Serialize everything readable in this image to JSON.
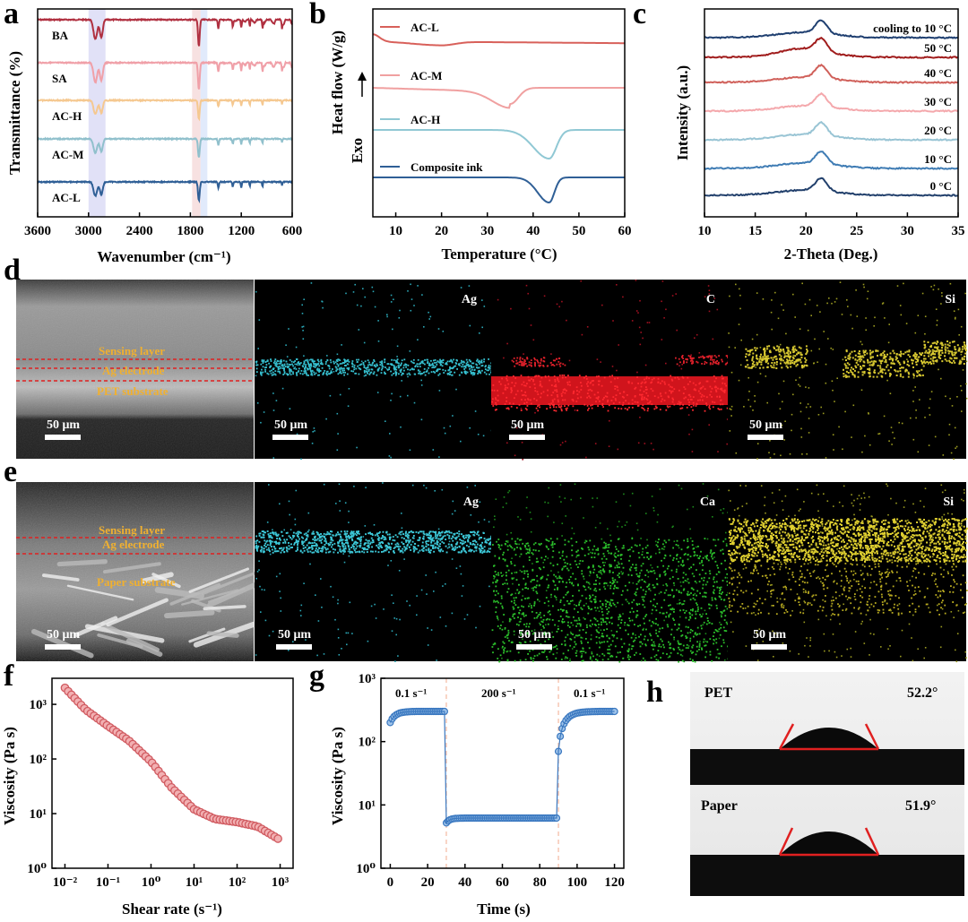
{
  "panel_letters": [
    "a",
    "b",
    "c",
    "d",
    "e",
    "f",
    "g",
    "h"
  ],
  "chart_data": [
    {
      "panel": "a",
      "type": "line",
      "xlabel": "Wavenumber (cm⁻¹)",
      "ylabel": "Transmittance (%)",
      "xlim": [
        3600,
        600
      ],
      "xticks": [
        "3600",
        "3000",
        "2400",
        "1800",
        "1200",
        "600"
      ],
      "highlight_bands": [
        [
          3000,
          2800,
          "#c8c8f0"
        ],
        [
          1780,
          1680,
          "#f0c8c8"
        ],
        [
          1680,
          1600,
          "#c8d8f8"
        ]
      ],
      "series": [
        {
          "name": "BA",
          "color": "#b03040"
        },
        {
          "name": "SA",
          "color": "#f0a0a8"
        },
        {
          "name": "AC-H",
          "color": "#f5c890"
        },
        {
          "name": "AC-M",
          "color": "#90c0cc"
        },
        {
          "name": "AC-L",
          "color": "#2f5f96"
        }
      ]
    },
    {
      "panel": "b",
      "type": "line",
      "xlabel": "Temperature (°C)",
      "ylabel": "Heat flow (W/g)",
      "annotation": "Exo",
      "xlim": [
        5,
        60
      ],
      "xticks": [
        "10",
        "20",
        "30",
        "40",
        "50",
        "60"
      ],
      "series": [
        {
          "name": "AC-L",
          "color": "#d8605a",
          "peak_c": 20
        },
        {
          "name": "AC-M",
          "color": "#f0a0a0",
          "peak_c": 35
        },
        {
          "name": "AC-H",
          "color": "#90c8d4",
          "peak_c": 43.5
        },
        {
          "name": "Composite ink",
          "color": "#2f5f96",
          "peak_c": 43.5
        }
      ]
    },
    {
      "panel": "c",
      "type": "line",
      "xlabel": "2-Theta (Deg.)",
      "ylabel": "Intensity (a.u.)",
      "xlim": [
        10,
        35
      ],
      "xticks": [
        "10",
        "15",
        "20",
        "25",
        "30",
        "35"
      ],
      "series": [
        {
          "name": "cooling to 10 °C",
          "color": "#1f3f70"
        },
        {
          "name": "50 °C",
          "color": "#a01c1c"
        },
        {
          "name": "40 °C",
          "color": "#d0605a"
        },
        {
          "name": "30 °C",
          "color": "#f4a8ac"
        },
        {
          "name": "20 °C",
          "color": "#98c4d4"
        },
        {
          "name": "10 °C",
          "color": "#3f7cb4"
        },
        {
          "name": "0 °C",
          "color": "#22406c"
        }
      ]
    },
    {
      "panel": "f",
      "type": "scatter",
      "xlabel": "Shear rate (s⁻¹)",
      "ylabel": "Viscosity (Pa s)",
      "xscale": "log",
      "yscale": "log",
      "xlim": [
        0.005,
        2000
      ],
      "ylim": [
        1,
        3000
      ],
      "xticks": [
        "10⁻²",
        "10⁻¹",
        "10⁰",
        "10¹",
        "10²",
        "10³"
      ],
      "yticks": [
        "10⁰",
        "10¹",
        "10²",
        "10³"
      ],
      "color": "#d05a60",
      "points": [
        [
          0.01,
          2000
        ],
        [
          0.03,
          800
        ],
        [
          0.1,
          400
        ],
        [
          0.3,
          220
        ],
        [
          1,
          90
        ],
        [
          3,
          30
        ],
        [
          10,
          12
        ],
        [
          30,
          8
        ],
        [
          100,
          7
        ],
        [
          300,
          5.8
        ],
        [
          1000,
          3.3
        ]
      ]
    },
    {
      "panel": "g",
      "type": "scatter",
      "xlabel": "Time (s)",
      "ylabel": "Viscosity (Pa s)",
      "yscale": "log",
      "xlim": [
        -5,
        125
      ],
      "ylim": [
        1,
        1000
      ],
      "xticks": [
        "0",
        "20",
        "40",
        "60",
        "80",
        "100",
        "120"
      ],
      "yticks": [
        "10⁰",
        "10¹",
        "10²",
        "10³"
      ],
      "color": "#3a78c0",
      "segment_labels": [
        "0.1 s⁻¹",
        "200 s⁻¹",
        "0.1 s⁻¹"
      ],
      "boundaries": [
        30,
        90
      ]
    }
  ],
  "sem_d": {
    "layers": [
      "Sensing layer",
      "Ag electrode",
      "PET substrate"
    ],
    "maps": [
      "Ag",
      "C",
      "Si"
    ],
    "scale": "50 μm"
  },
  "sem_e": {
    "layers": [
      "Sensing layer",
      "Ag electrode",
      "Paper substrate"
    ],
    "maps": [
      "Ag",
      "Ca",
      "Si"
    ],
    "scale": "50 μm"
  },
  "contact_h": [
    {
      "substrate": "PET",
      "angle": "52.2°"
    },
    {
      "substrate": "Paper",
      "angle": "51.9°"
    }
  ]
}
